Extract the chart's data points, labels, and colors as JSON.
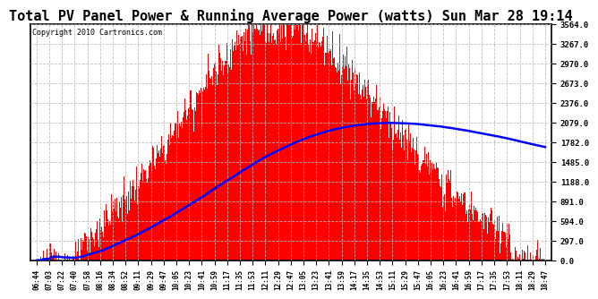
{
  "title": "Total PV Panel Power & Running Average Power (watts) Sun Mar 28 19:14",
  "copyright": "Copyright 2010 Cartronics.com",
  "yticks": [
    0.0,
    297.0,
    594.0,
    891.0,
    1188.0,
    1485.0,
    1782.0,
    2079.0,
    2376.0,
    2673.0,
    2970.0,
    3267.0,
    3564.0
  ],
  "xtick_labels": [
    "06:44",
    "07:03",
    "07:22",
    "07:40",
    "07:58",
    "08:16",
    "08:34",
    "08:52",
    "09:11",
    "09:29",
    "09:47",
    "10:05",
    "10:23",
    "10:41",
    "10:59",
    "11:17",
    "11:35",
    "11:53",
    "12:11",
    "12:29",
    "12:47",
    "13:05",
    "13:23",
    "13:41",
    "13:59",
    "14:17",
    "14:35",
    "14:53",
    "15:11",
    "15:29",
    "15:47",
    "16:05",
    "16:23",
    "16:41",
    "16:59",
    "17:17",
    "17:35",
    "17:53",
    "18:11",
    "18:29",
    "18:47"
  ],
  "n_xticks": 41,
  "ymax": 3564.0,
  "ymin": 0.0,
  "bar_color": "#FF0000",
  "line_color": "#0000FF",
  "background_color": "#FFFFFF",
  "grid_color": "#BBBBBB",
  "title_fontsize": 11,
  "copyright_fontsize": 6,
  "peak_index": 20,
  "n_bars": 600
}
